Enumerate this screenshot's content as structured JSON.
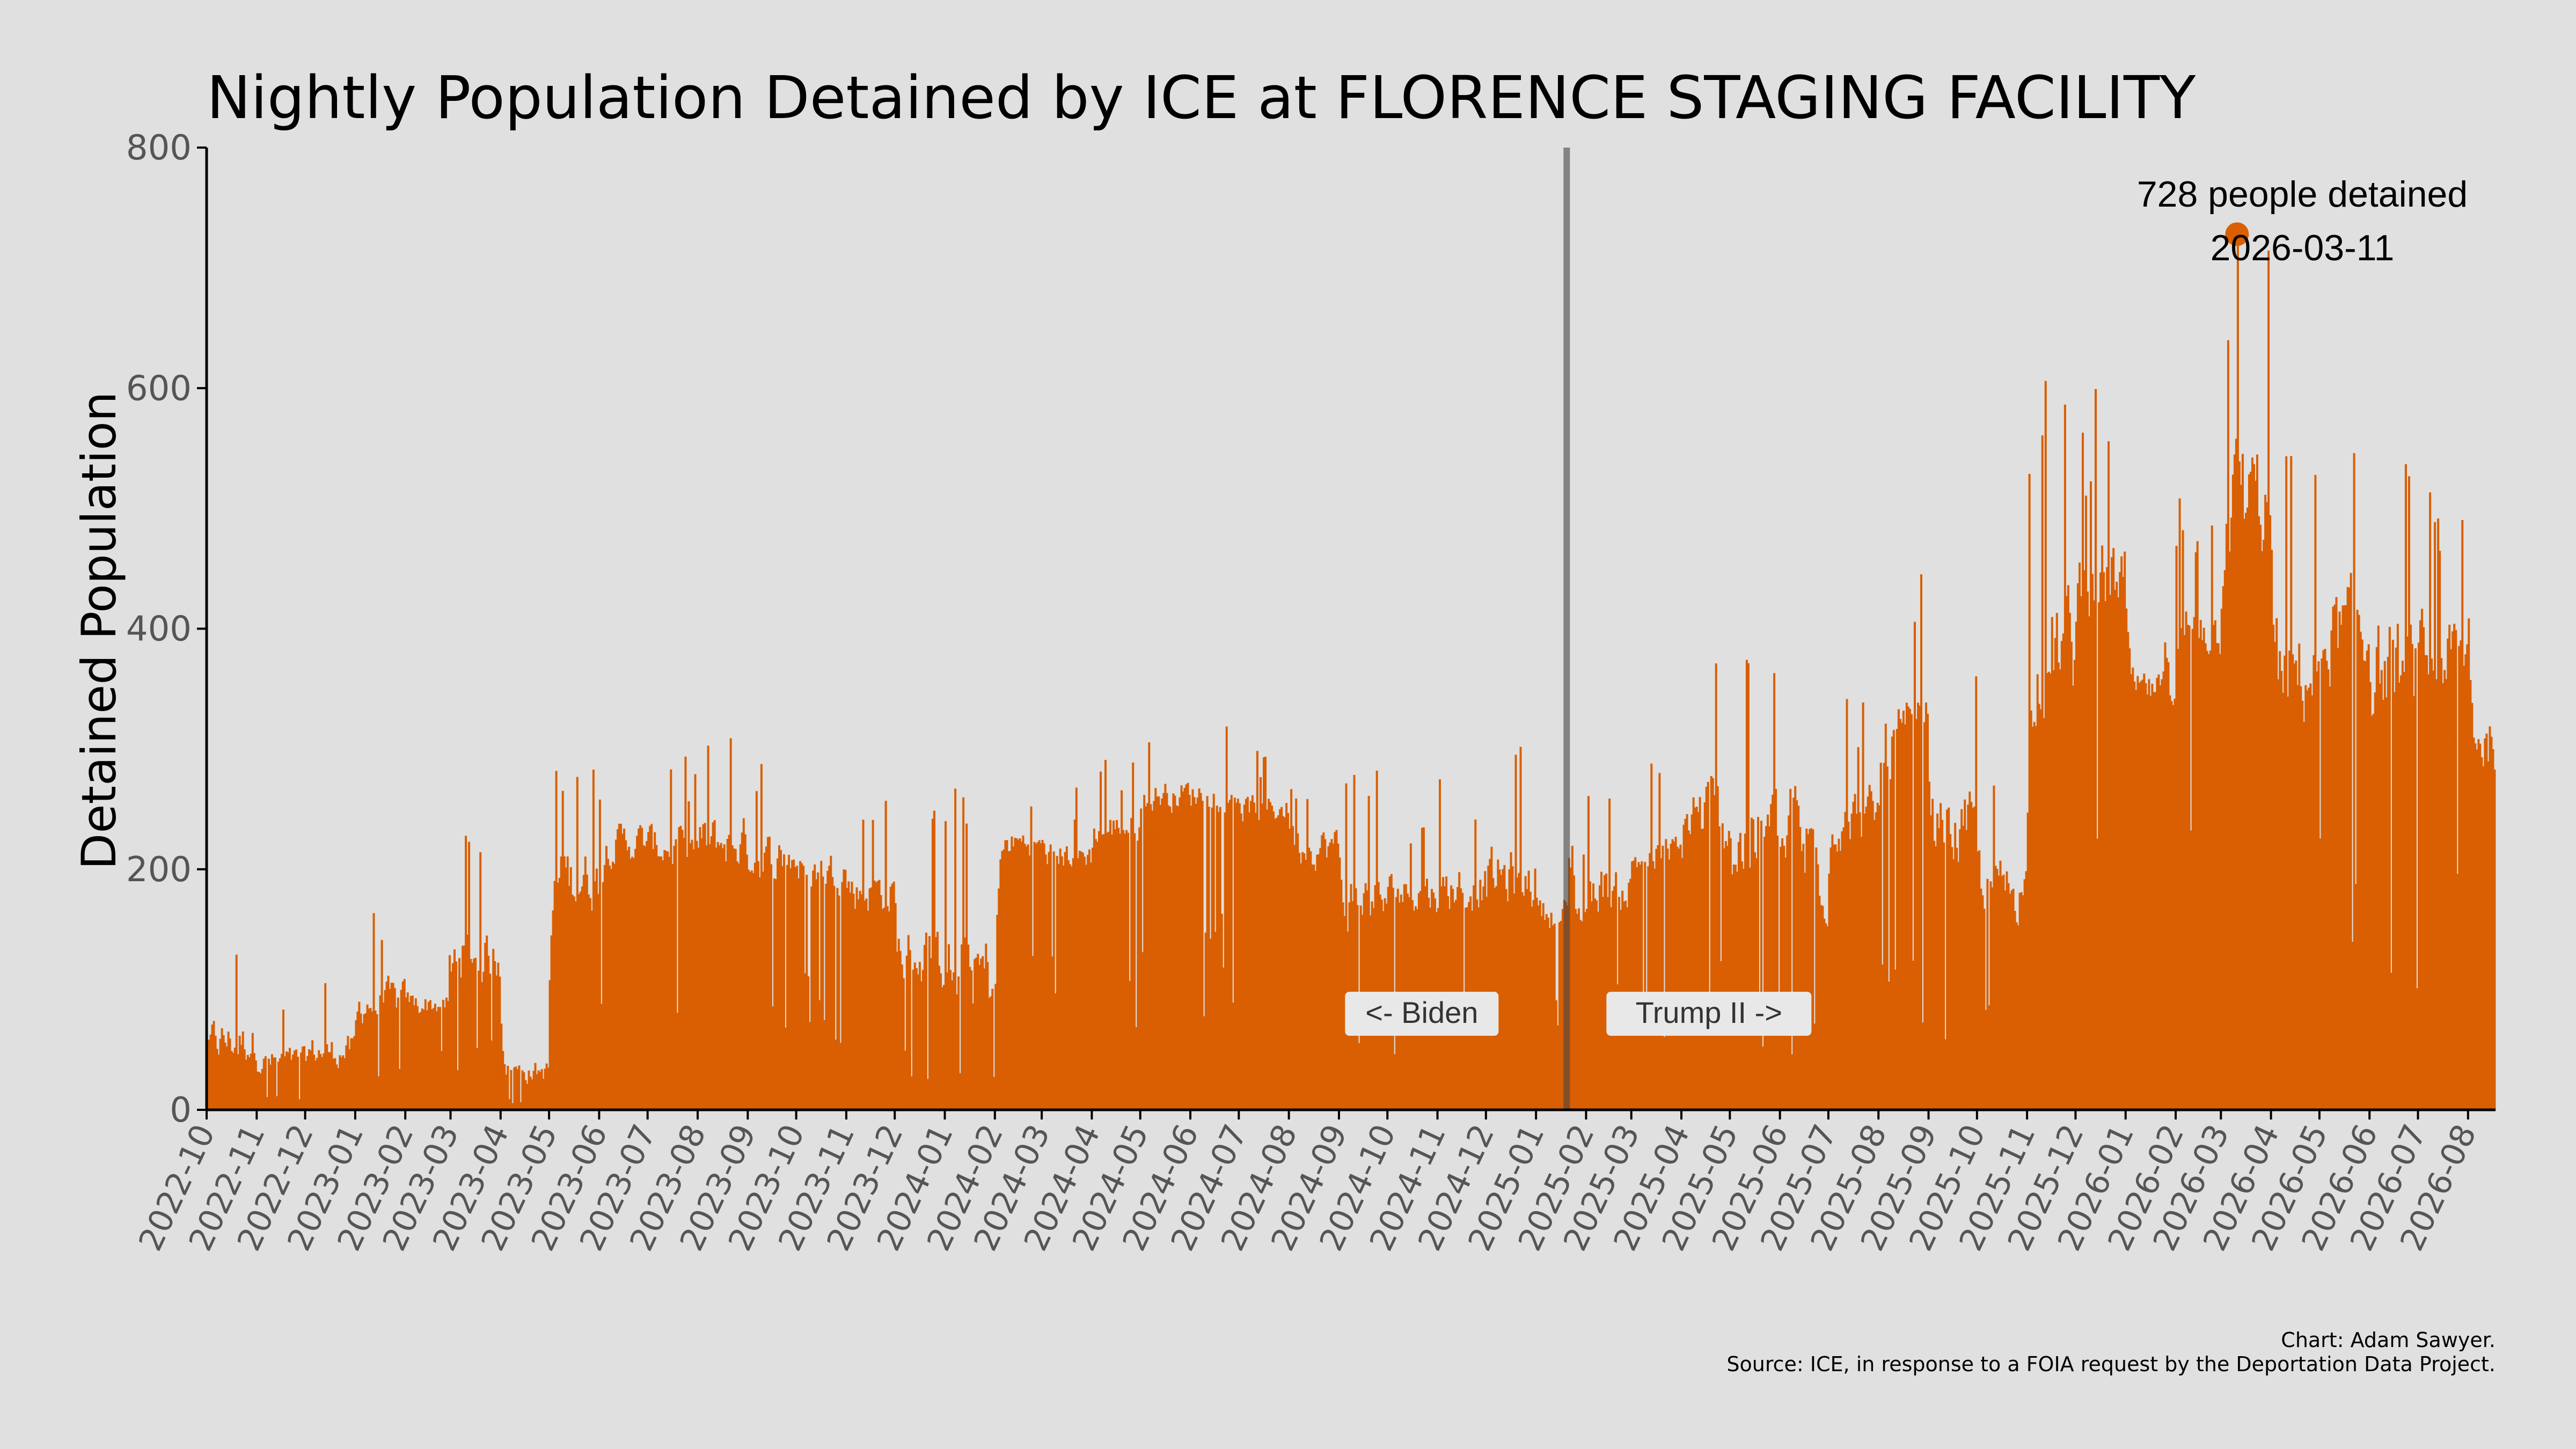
{
  "title": "Nightly Population Detained by ICE at FLORENCE STAGING FACILITY",
  "credit": "Chart: Adam Sawyer.",
  "source": "Source: ICE, in response to a FOIA request by the Deportation Data Project.",
  "colors": {
    "bars": "#d95f02",
    "background": "#e0e0e0",
    "divider": "#444444",
    "label_box": "#e8e8e8"
  },
  "chart_data": {
    "type": "bar",
    "ylabel": "Detained Population",
    "xlabel": "",
    "ylim": [
      0,
      800
    ],
    "yticks": [
      0,
      200,
      400,
      600,
      800
    ],
    "xlim": [
      "2022-10-01",
      "2026-08-18"
    ],
    "x_tick_labels": [
      "2022-10",
      "2022-11",
      "2022-12",
      "2023-01",
      "2023-02",
      "2023-03",
      "2023-04",
      "2023-05",
      "2023-06",
      "2023-07",
      "2023-08",
      "2023-09",
      "2023-10",
      "2023-11",
      "2023-12",
      "2024-01",
      "2024-02",
      "2024-03",
      "2024-04",
      "2024-05",
      "2024-06",
      "2024-07",
      "2024-08",
      "2024-09",
      "2024-10",
      "2024-11",
      "2024-12",
      "2025-01",
      "2025-02",
      "2025-03",
      "2025-04",
      "2025-05",
      "2025-06",
      "2025-07",
      "2025-08",
      "2025-09",
      "2025-10",
      "2025-11",
      "2025-12",
      "2026-01",
      "2026-02",
      "2026-03",
      "2026-04",
      "2026-05",
      "2026-06",
      "2026-07",
      "2026-08"
    ],
    "grid": false,
    "divider": {
      "date": "2025-01-20",
      "left_label": "<- Biden",
      "right_label": "Trump II ->"
    },
    "peak": {
      "date": "2026-03-11",
      "value": 728,
      "label": "728 people detained",
      "date_label": "2026-03-11"
    },
    "series": [
      {
        "frequency": "daily",
        "description": "monthly baseline level and typical daily range; daily bars vary within this range",
        "monthly": [
          {
            "month": "2022-10",
            "level": 25,
            "hi": 140
          },
          {
            "month": "2022-11",
            "level": 20,
            "hi": 90
          },
          {
            "month": "2022-12",
            "level": 25,
            "hi": 110
          },
          {
            "month": "2023-01",
            "level": 60,
            "hi": 165
          },
          {
            "month": "2023-02",
            "level": 70,
            "hi": 135
          },
          {
            "month": "2023-03",
            "level": 90,
            "hi": 235
          },
          {
            "month": "2023-04",
            "level": 15,
            "hi": 75
          },
          {
            "month": "2023-05",
            "level": 150,
            "hi": 305
          },
          {
            "month": "2023-06",
            "level": 195,
            "hi": 295
          },
          {
            "month": "2023-07",
            "level": 190,
            "hi": 295
          },
          {
            "month": "2023-08",
            "level": 185,
            "hi": 320
          },
          {
            "month": "2023-09",
            "level": 175,
            "hi": 300
          },
          {
            "month": "2023-10",
            "level": 170,
            "hi": 275
          },
          {
            "month": "2023-11",
            "level": 150,
            "hi": 265
          },
          {
            "month": "2023-12",
            "level": 80,
            "hi": 250
          },
          {
            "month": "2024-01",
            "level": 50,
            "hi": 275
          },
          {
            "month": "2024-02",
            "level": 200,
            "hi": 280
          },
          {
            "month": "2024-03",
            "level": 190,
            "hi": 270
          },
          {
            "month": "2024-04",
            "level": 210,
            "hi": 300
          },
          {
            "month": "2024-05",
            "level": 240,
            "hi": 320
          },
          {
            "month": "2024-06",
            "level": 240,
            "hi": 325
          },
          {
            "month": "2024-07",
            "level": 230,
            "hi": 305
          },
          {
            "month": "2024-08",
            "level": 190,
            "hi": 295
          },
          {
            "month": "2024-09",
            "level": 130,
            "hi": 290
          },
          {
            "month": "2024-10",
            "level": 150,
            "hi": 260
          },
          {
            "month": "2024-11",
            "level": 150,
            "hi": 280
          },
          {
            "month": "2024-12",
            "level": 150,
            "hi": 305
          },
          {
            "month": "2025-01",
            "level": 140,
            "hi": 225
          },
          {
            "month": "2025-02",
            "level": 150,
            "hi": 280
          },
          {
            "month": "2025-03",
            "level": 180,
            "hi": 290
          },
          {
            "month": "2025-04",
            "level": 190,
            "hi": 385
          },
          {
            "month": "2025-05",
            "level": 140,
            "hi": 420
          },
          {
            "month": "2025-06",
            "level": 130,
            "hi": 440
          },
          {
            "month": "2025-07",
            "level": 200,
            "hi": 350
          },
          {
            "month": "2025-08",
            "level": 240,
            "hi": 460
          },
          {
            "month": "2025-09",
            "level": 180,
            "hi": 370
          },
          {
            "month": "2025-10",
            "level": 140,
            "hi": 300
          },
          {
            "month": "2025-11",
            "level": 300,
            "hi": 610
          },
          {
            "month": "2025-12",
            "level": 380,
            "hi": 600
          },
          {
            "month": "2026-01",
            "level": 320,
            "hi": 420
          },
          {
            "month": "2026-02",
            "level": 360,
            "hi": 520
          },
          {
            "month": "2026-03",
            "level": 420,
            "hi": 728
          },
          {
            "month": "2026-04",
            "level": 290,
            "hi": 555
          },
          {
            "month": "2026-05",
            "level": 330,
            "hi": 570
          },
          {
            "month": "2026-06",
            "level": 290,
            "hi": 555
          },
          {
            "month": "2026-07",
            "level": 320,
            "hi": 525
          },
          {
            "month": "2026-08",
            "level": 260,
            "hi": 435
          }
        ]
      }
    ]
  }
}
